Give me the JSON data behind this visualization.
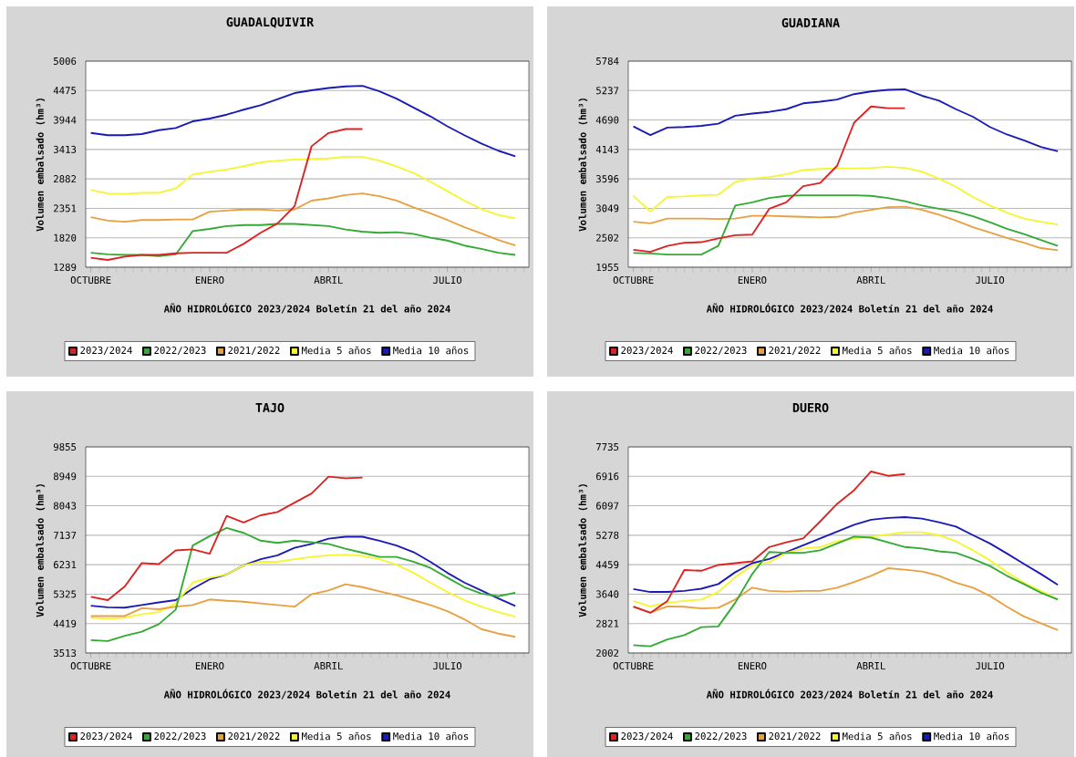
{
  "chart_data": [
    {
      "type": "line",
      "title": "GUADALQUIVIR",
      "xlabel": "AÑO HIDROLÓGICO 2023/2024 Boletín 21 del año 2024",
      "ylabel": "Volumen embalsado (hm³)",
      "categories": [
        "OCTUBRE",
        null,
        null,
        null,
        null,
        null,
        null,
        "ENERO",
        null,
        null,
        null,
        null,
        null,
        null,
        "ABRIL",
        null,
        null,
        null,
        null,
        null,
        null,
        "JULIO",
        null,
        null,
        null,
        null
      ],
      "ylim": [
        1289,
        5006
      ],
      "yticks": [
        1289,
        1820,
        2351,
        2882,
        3413,
        3944,
        4475,
        5006
      ],
      "grid": "y",
      "legend": "bottom",
      "series": [
        {
          "name": "2023/2024",
          "color": "#dd2222",
          "values": [
            1460,
            1420,
            1480,
            1510,
            1510,
            1540,
            1550,
            1550,
            1550,
            1710,
            1910,
            2080,
            2390,
            3470,
            3710,
            3780,
            3780,
            null,
            null,
            null,
            null,
            null,
            null,
            null,
            null,
            null
          ]
        },
        {
          "name": "2022/2023",
          "color": "#33aa33",
          "values": [
            1550,
            1520,
            1510,
            1510,
            1490,
            1520,
            1940,
            1980,
            2030,
            2050,
            2050,
            2070,
            2070,
            2050,
            2030,
            1970,
            1930,
            1910,
            1920,
            1890,
            1820,
            1770,
            1680,
            1620,
            1550,
            1510
          ]
        },
        {
          "name": "2021/2022",
          "color": "#e8a040",
          "values": [
            2190,
            2130,
            2110,
            2140,
            2140,
            2150,
            2150,
            2290,
            2310,
            2330,
            2330,
            2310,
            2330,
            2490,
            2530,
            2590,
            2620,
            2570,
            2490,
            2370,
            2260,
            2140,
            2010,
            1900,
            1780,
            1680
          ]
        },
        {
          "name": "Media 5 años",
          "color": "#f5f530",
          "values": [
            2680,
            2620,
            2610,
            2630,
            2630,
            2710,
            2960,
            3010,
            3050,
            3110,
            3180,
            3210,
            3230,
            3240,
            3250,
            3280,
            3280,
            3210,
            3110,
            2990,
            2830,
            2660,
            2490,
            2340,
            2230,
            2170
          ]
        },
        {
          "name": "Media 10 años",
          "color": "#1a1ab4",
          "values": [
            3710,
            3670,
            3670,
            3690,
            3760,
            3800,
            3920,
            3970,
            4040,
            4130,
            4210,
            4320,
            4430,
            4480,
            4520,
            4550,
            4560,
            4460,
            4330,
            4170,
            4010,
            3830,
            3670,
            3520,
            3390,
            3290
          ]
        }
      ]
    },
    {
      "type": "line",
      "title": "GUADIANA",
      "xlabel": "AÑO HIDROLÓGICO 2023/2024 Boletín 21 del año 2024",
      "ylabel": "Volumen embalsado (hm³)",
      "categories": [
        "OCTUBRE",
        null,
        null,
        null,
        null,
        null,
        null,
        "ENERO",
        null,
        null,
        null,
        null,
        null,
        null,
        "ABRIL",
        null,
        null,
        null,
        null,
        null,
        null,
        "JULIO",
        null,
        null,
        null,
        null
      ],
      "ylim": [
        1955,
        5784
      ],
      "yticks": [
        1955,
        2502,
        3049,
        3596,
        4143,
        4690,
        5237,
        5784
      ],
      "grid": "y",
      "legend": "bottom",
      "series": [
        {
          "name": "2023/2024",
          "color": "#dd2222",
          "values": [
            2280,
            2240,
            2350,
            2410,
            2420,
            2490,
            2550,
            2560,
            3040,
            3160,
            3460,
            3520,
            3840,
            4640,
            4940,
            4910,
            4910,
            null,
            null,
            null,
            null,
            null,
            null,
            null,
            null,
            null
          ]
        },
        {
          "name": "2022/2023",
          "color": "#33aa33",
          "values": [
            2220,
            2210,
            2190,
            2190,
            2190,
            2350,
            3100,
            3160,
            3240,
            3280,
            3290,
            3290,
            3290,
            3290,
            3280,
            3240,
            3180,
            3100,
            3040,
            2990,
            2900,
            2790,
            2670,
            2570,
            2460,
            2350
          ]
        },
        {
          "name": "2021/2022",
          "color": "#e8a040",
          "values": [
            2800,
            2770,
            2860,
            2860,
            2860,
            2850,
            2860,
            2910,
            2910,
            2900,
            2890,
            2880,
            2890,
            2970,
            3020,
            3070,
            3080,
            3020,
            2930,
            2820,
            2700,
            2600,
            2500,
            2410,
            2310,
            2270
          ]
        },
        {
          "name": "Media 5 años",
          "color": "#f5f530",
          "values": [
            3280,
            2990,
            3260,
            3270,
            3290,
            3300,
            3540,
            3600,
            3630,
            3680,
            3760,
            3780,
            3790,
            3790,
            3800,
            3820,
            3800,
            3730,
            3600,
            3450,
            3260,
            3100,
            2970,
            2860,
            2800,
            2750
          ]
        },
        {
          "name": "Media 10 años",
          "color": "#1a1ab4",
          "values": [
            4570,
            4410,
            4550,
            4560,
            4580,
            4620,
            4770,
            4810,
            4840,
            4890,
            5000,
            5030,
            5070,
            5170,
            5220,
            5250,
            5260,
            5140,
            5050,
            4890,
            4750,
            4560,
            4420,
            4310,
            4190,
            4110
          ]
        }
      ]
    },
    {
      "type": "line",
      "title": "TAJO",
      "xlabel": "AÑO HIDROLÓGICO 2023/2024 Boletín 21 del año 2024",
      "ylabel": "Volumen embalsado (hm³)",
      "categories": [
        "OCTUBRE",
        null,
        null,
        null,
        null,
        null,
        null,
        "ENERO",
        null,
        null,
        null,
        null,
        null,
        null,
        "ABRIL",
        null,
        null,
        null,
        null,
        null,
        null,
        "JULIO",
        null,
        null,
        null,
        null
      ],
      "ylim": [
        3513,
        9855
      ],
      "yticks": [
        3513,
        4419,
        5325,
        6231,
        7137,
        8043,
        8949,
        9855
      ],
      "grid": "y",
      "legend": "bottom",
      "series": [
        {
          "name": "2023/2024",
          "color": "#dd2222",
          "values": [
            5240,
            5140,
            5560,
            6280,
            6250,
            6670,
            6700,
            6570,
            7730,
            7530,
            7750,
            7850,
            8140,
            8420,
            8940,
            8890,
            8910,
            null,
            null,
            null,
            null,
            null,
            null,
            null,
            null,
            null
          ]
        },
        {
          "name": "2022/2023",
          "color": "#33aa33",
          "values": [
            3910,
            3880,
            4040,
            4170,
            4400,
            4850,
            6820,
            7110,
            7360,
            7210,
            6970,
            6900,
            6970,
            6920,
            6870,
            6720,
            6600,
            6470,
            6470,
            6320,
            6130,
            5830,
            5540,
            5340,
            5260,
            5370
          ]
        },
        {
          "name": "2021/2022",
          "color": "#e8a040",
          "values": [
            4650,
            4650,
            4650,
            4890,
            4860,
            4940,
            4990,
            5160,
            5120,
            5090,
            5040,
            4990,
            4940,
            5320,
            5440,
            5630,
            5540,
            5410,
            5290,
            5140,
            4990,
            4800,
            4550,
            4250,
            4110,
            4010
          ]
        },
        {
          "name": "Media 5 años",
          "color": "#f5f530",
          "values": [
            4600,
            4570,
            4600,
            4700,
            4770,
            5040,
            5680,
            5830,
            5930,
            6210,
            6320,
            6320,
            6400,
            6470,
            6520,
            6540,
            6500,
            6400,
            6230,
            5980,
            5680,
            5390,
            5140,
            4940,
            4770,
            4630
          ]
        },
        {
          "name": "Media 10 años",
          "color": "#1a1ab4",
          "values": [
            4970,
            4920,
            4910,
            4990,
            5070,
            5140,
            5490,
            5780,
            5930,
            6210,
            6400,
            6520,
            6750,
            6870,
            7030,
            7090,
            7090,
            6970,
            6820,
            6620,
            6320,
            5980,
            5680,
            5440,
            5190,
            4960
          ]
        }
      ]
    },
    {
      "type": "line",
      "title": "DUERO",
      "xlabel": "AÑO HIDROLÓGICO 2023/2024 Boletín 21 del año 2024",
      "ylabel": "Volumen embalsado (hm³)",
      "categories": [
        "OCTUBRE",
        null,
        null,
        null,
        null,
        null,
        null,
        "ENERO",
        null,
        null,
        null,
        null,
        null,
        null,
        "ABRIL",
        null,
        null,
        null,
        null,
        null,
        null,
        "JULIO",
        null,
        null,
        null,
        null
      ],
      "ylim": [
        2002,
        7735
      ],
      "yticks": [
        2002,
        2821,
        3640,
        4459,
        5278,
        6097,
        6916,
        7735
      ],
      "grid": "y",
      "legend": "bottom",
      "series": [
        {
          "name": "2023/2024",
          "color": "#dd2222",
          "values": [
            3290,
            3120,
            3450,
            4310,
            4290,
            4450,
            4500,
            4550,
            4950,
            5080,
            5190,
            5660,
            6150,
            6530,
            7050,
            6930,
            6980,
            null,
            null,
            null,
            null,
            null,
            null,
            null,
            null,
            null
          ]
        },
        {
          "name": "2022/2023",
          "color": "#33aa33",
          "values": [
            2220,
            2190,
            2380,
            2500,
            2720,
            2740,
            3400,
            4200,
            4810,
            4790,
            4790,
            4860,
            5050,
            5240,
            5210,
            5080,
            4950,
            4910,
            4830,
            4790,
            4620,
            4420,
            4150,
            3920,
            3680,
            3490
          ]
        },
        {
          "name": "2021/2022",
          "color": "#e8a040",
          "values": [
            3290,
            3130,
            3300,
            3290,
            3240,
            3260,
            3490,
            3820,
            3730,
            3710,
            3730,
            3730,
            3820,
            3980,
            4150,
            4360,
            4320,
            4270,
            4150,
            3960,
            3820,
            3590,
            3290,
            3020,
            2830,
            2640
          ]
        },
        {
          "name": "Media 5 años",
          "color": "#f5f530",
          "values": [
            3450,
            3300,
            3400,
            3450,
            3490,
            3700,
            4110,
            4440,
            4530,
            4790,
            4910,
            4950,
            5110,
            5190,
            5240,
            5300,
            5360,
            5360,
            5280,
            5110,
            4860,
            4580,
            4250,
            3960,
            3730,
            3490
          ]
        },
        {
          "name": "Media 10 años",
          "color": "#1a1ab4",
          "values": [
            3780,
            3700,
            3700,
            3730,
            3790,
            3920,
            4250,
            4500,
            4620,
            4810,
            5000,
            5190,
            5380,
            5570,
            5710,
            5760,
            5780,
            5740,
            5640,
            5520,
            5280,
            5050,
            4770,
            4480,
            4200,
            3900
          ]
        }
      ]
    }
  ]
}
